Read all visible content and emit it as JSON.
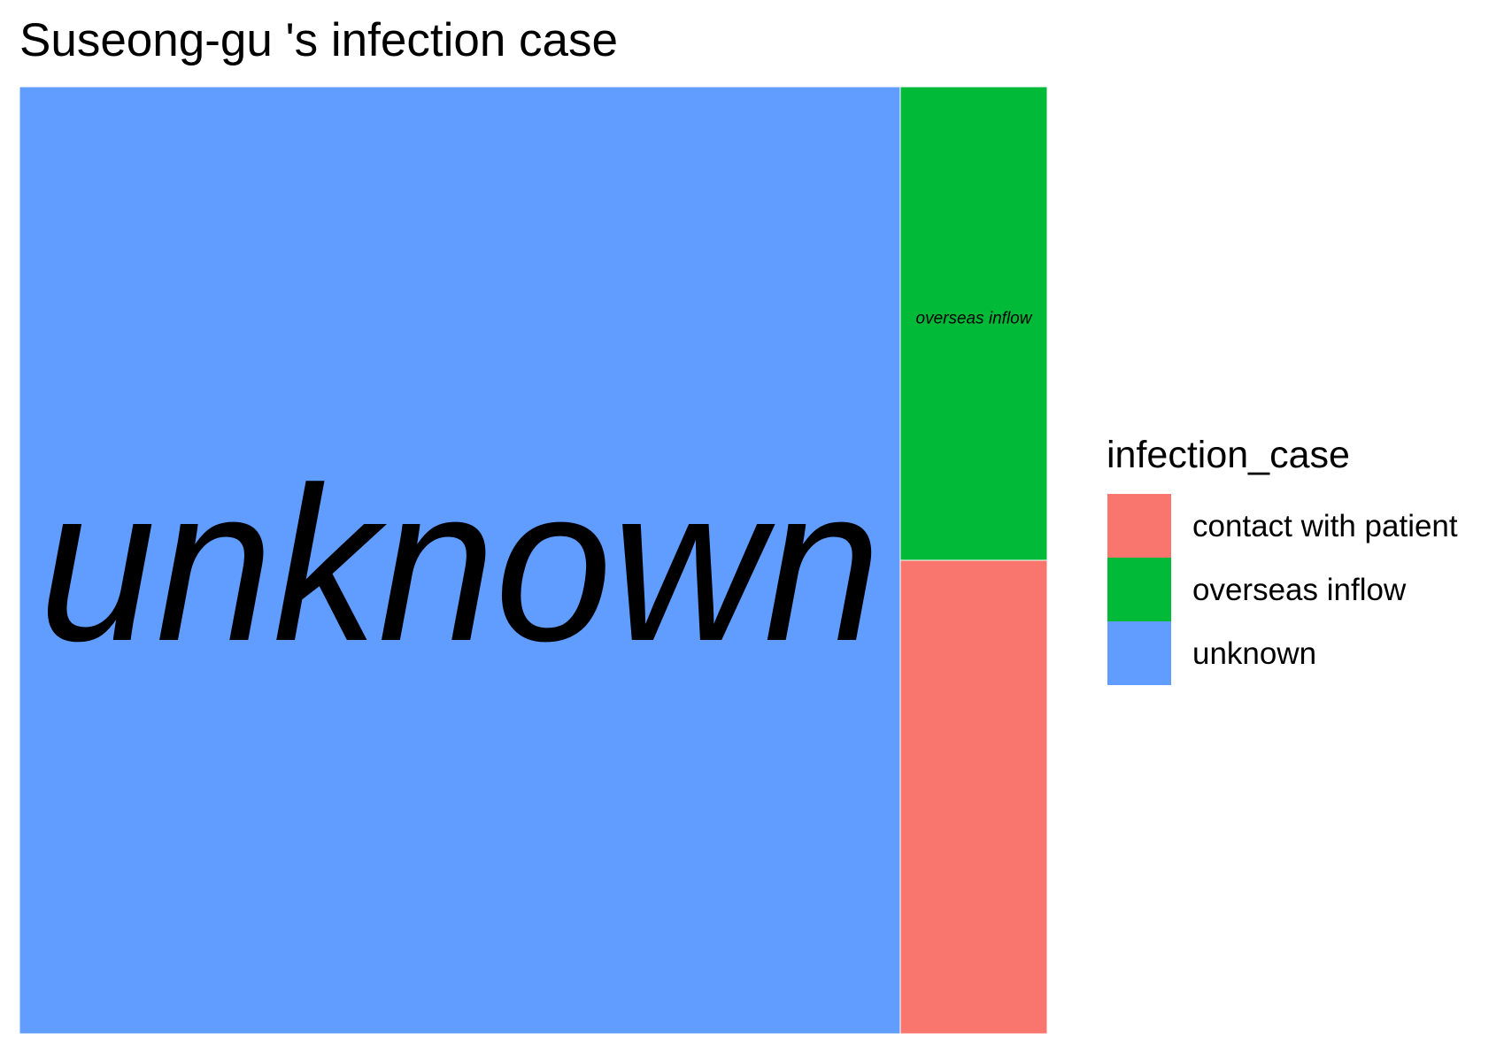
{
  "chart_data": {
    "type": "treemap",
    "title": "Suseong-gu 's infection case",
    "legend": {
      "title": "infection_case",
      "placement": "right",
      "items": [
        {
          "label": "contact with patient",
          "color": "#F8766D"
        },
        {
          "label": "overseas inflow",
          "color": "#00BA38"
        },
        {
          "label": "unknown",
          "color": "#619CFF"
        }
      ]
    },
    "tiles": [
      {
        "category": "unknown",
        "share": 0.857,
        "color": "#619CFF",
        "label": "unknown"
      },
      {
        "category": "overseas inflow",
        "share": 0.0715,
        "color": "#00BA38",
        "label": "overseas inflow"
      },
      {
        "category": "contact with patient",
        "share": 0.0715,
        "color": "#F8766D",
        "label": ""
      }
    ]
  }
}
